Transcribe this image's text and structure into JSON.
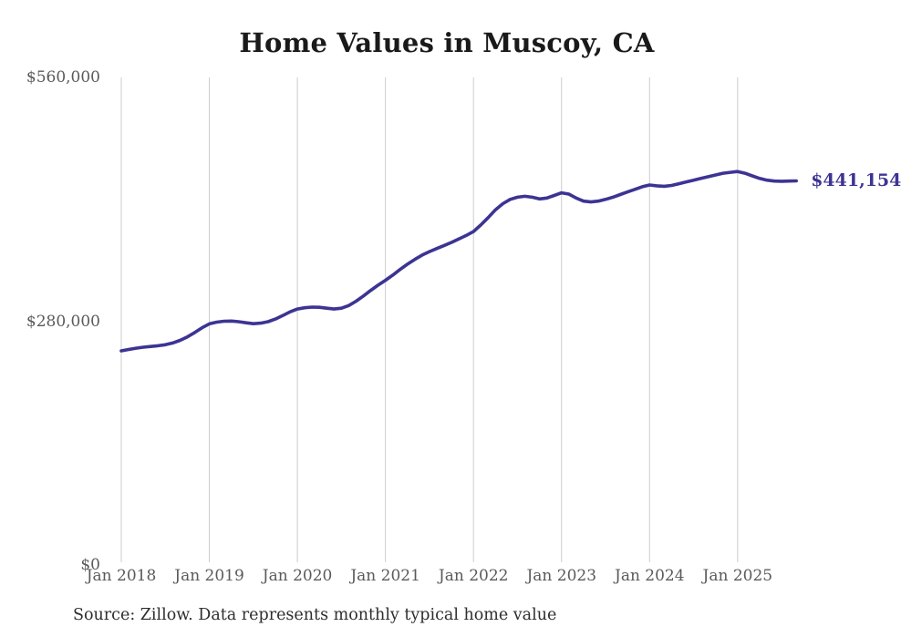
{
  "title": "Home Values in Muscoy, CA",
  "source_note": "Source: Zillow. Data represents monthly typical home value",
  "end_label": "$441,154",
  "colors": {
    "background": "#ffffff",
    "line": "#3c3493",
    "end_label": "#3c3493",
    "grid": "#cccccc",
    "title": "#1a1a1a",
    "tick": "#5a5a5a",
    "source": "#2e2e2e"
  },
  "y_axis": {
    "ticks": [
      {
        "label": "$560,000",
        "value": 560000
      },
      {
        "label": "$280,000",
        "value": 280000
      },
      {
        "label": "$0",
        "value": 0
      }
    ]
  },
  "x_axis": {
    "ticks": [
      "Jan 2018",
      "Jan 2019",
      "Jan 2020",
      "Jan 2021",
      "Jan 2022",
      "Jan 2023",
      "Jan 2024",
      "Jan 2025"
    ]
  },
  "chart_data": {
    "type": "line",
    "title": "Home Values in Muscoy, CA",
    "ylabel": "",
    "xlabel": "",
    "ylim": [
      0,
      560000
    ],
    "y_tick_values": [
      0,
      280000,
      560000
    ],
    "grid": "vertical-only",
    "legend": "none",
    "last_value": 441154,
    "last_value_label": "$441,154",
    "x": [
      "2018-01",
      "2018-02",
      "2018-03",
      "2018-04",
      "2018-05",
      "2018-06",
      "2018-07",
      "2018-08",
      "2018-09",
      "2018-10",
      "2018-11",
      "2018-12",
      "2019-01",
      "2019-02",
      "2019-03",
      "2019-04",
      "2019-05",
      "2019-06",
      "2019-07",
      "2019-08",
      "2019-09",
      "2019-10",
      "2019-11",
      "2019-12",
      "2020-01",
      "2020-02",
      "2020-03",
      "2020-04",
      "2020-05",
      "2020-06",
      "2020-07",
      "2020-08",
      "2020-09",
      "2020-10",
      "2020-11",
      "2020-12",
      "2021-01",
      "2021-02",
      "2021-03",
      "2021-04",
      "2021-05",
      "2021-06",
      "2021-07",
      "2021-08",
      "2021-09",
      "2021-10",
      "2021-11",
      "2021-12",
      "2022-01",
      "2022-02",
      "2022-03",
      "2022-04",
      "2022-05",
      "2022-06",
      "2022-07",
      "2022-08",
      "2022-09",
      "2022-10",
      "2022-11",
      "2022-12",
      "2023-01",
      "2023-02",
      "2023-03",
      "2023-04",
      "2023-05",
      "2023-06",
      "2023-07",
      "2023-08",
      "2023-09",
      "2023-10",
      "2023-11",
      "2023-12",
      "2024-01",
      "2024-02",
      "2024-03",
      "2024-04",
      "2024-05",
      "2024-06",
      "2024-07",
      "2024-08",
      "2024-09",
      "2024-10",
      "2024-11",
      "2024-12",
      "2025-01",
      "2025-02",
      "2025-03",
      "2025-04",
      "2025-05",
      "2025-06",
      "2025-07",
      "2025-08",
      "2025-09"
    ],
    "values": [
      246000,
      247500,
      249000,
      250200,
      251000,
      251800,
      253000,
      255000,
      258000,
      262000,
      267000,
      272500,
      277000,
      279000,
      280000,
      280200,
      279500,
      278200,
      277200,
      277800,
      279500,
      282500,
      286500,
      290800,
      294000,
      295500,
      296200,
      296000,
      295000,
      294000,
      295000,
      298000,
      303000,
      309000,
      315500,
      321500,
      327000,
      333000,
      339500,
      345500,
      351000,
      356000,
      360000,
      363500,
      367000,
      370500,
      374500,
      378500,
      383000,
      390500,
      399000,
      408000,
      415000,
      420000,
      422500,
      423500,
      422500,
      420500,
      421500,
      424500,
      427500,
      426000,
      421500,
      418000,
      417000,
      418000,
      420000,
      422500,
      425500,
      428500,
      431500,
      434500,
      436500,
      435500,
      435000,
      436000,
      438000,
      440000,
      442000,
      444000,
      446000,
      448000,
      450000,
      451000,
      452000,
      450000,
      447000,
      444000,
      442000,
      441000,
      440800,
      441000,
      441154
    ]
  }
}
